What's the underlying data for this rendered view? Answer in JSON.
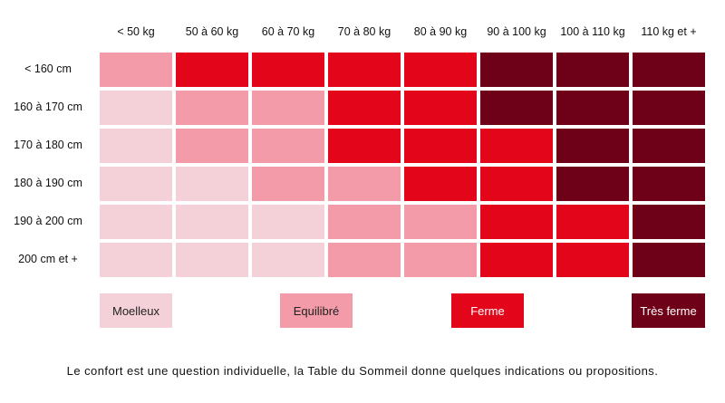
{
  "weight_columns": [
    "< 50 kg",
    "50 à 60 kg",
    "60 à 70 kg",
    "70 à 80 kg",
    "80 à 90 kg",
    "90 à 100 kg",
    "100 à 110 kg",
    "110 kg et +"
  ],
  "height_rows": [
    "< 160 cm",
    "160 à 170 cm",
    "170 à 180 cm",
    "180 à 190 cm",
    "190 à 200 cm",
    "200 cm et +"
  ],
  "levels": [
    {
      "label": "Moelleux",
      "color": "#f4d0d9"
    },
    {
      "label": "Equilibré",
      "color": "#f39ba9"
    },
    {
      "label": "Ferme",
      "color": "#e3061a"
    },
    {
      "label": "Très ferme",
      "color": "#6e0017"
    }
  ],
  "matrix": [
    [
      1,
      2,
      2,
      2,
      2,
      3,
      3,
      3
    ],
    [
      0,
      1,
      1,
      2,
      2,
      3,
      3,
      3
    ],
    [
      0,
      1,
      1,
      2,
      2,
      2,
      3,
      3
    ],
    [
      0,
      0,
      1,
      1,
      2,
      2,
      3,
      3
    ],
    [
      0,
      0,
      0,
      1,
      1,
      2,
      2,
      3
    ],
    [
      0,
      0,
      0,
      1,
      1,
      2,
      2,
      3
    ]
  ],
  "legend_text_colors": [
    "#222222",
    "#222222",
    "#ffffff",
    "#ffffff"
  ],
  "footnote": "Le confort est une question individuelle, la Table du Sommeil donne quelques indications ou propositions."
}
